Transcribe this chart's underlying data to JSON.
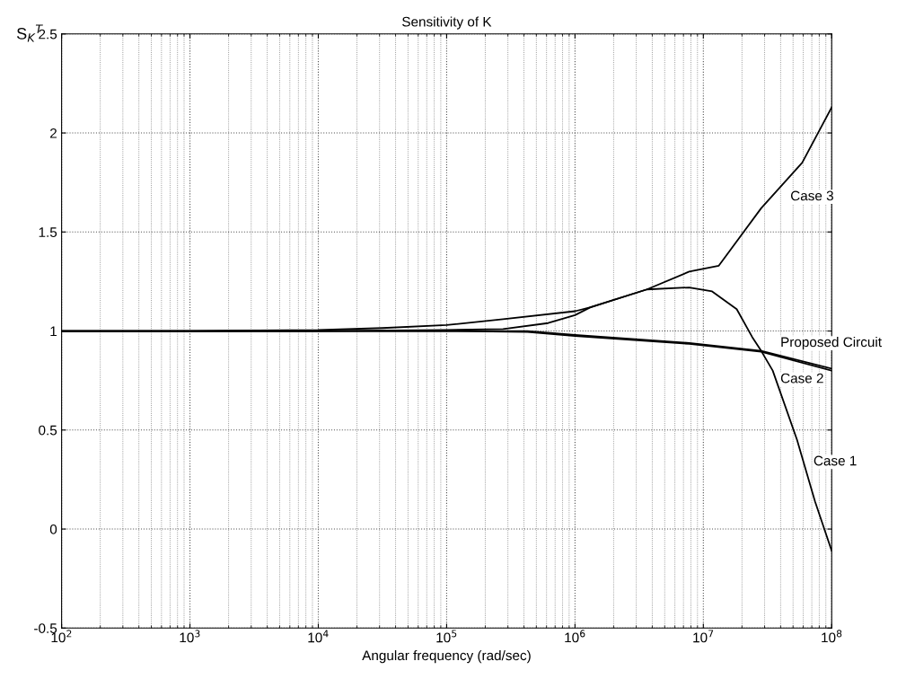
{
  "chart_data": {
    "type": "line",
    "title": "Sensitivity of K",
    "xlabel": "Angular frequency (rad/sec)",
    "ylabel": "S$_{K}$$^{T}$",
    "log": "x",
    "grid": true,
    "xlim": [
      100,
      100000000
    ],
    "ylim": [
      -0.5,
      2.5
    ],
    "xticks": [
      {
        "value": 100,
        "label": "10$^{2}$"
      },
      {
        "value": 1000,
        "label": "10$^{3}$"
      },
      {
        "value": 10000,
        "label": "10$^{4}$"
      },
      {
        "value": 100000,
        "label": "10$^{5}$"
      },
      {
        "value": 1000000,
        "label": "10$^{6}$"
      },
      {
        "value": 10000000,
        "label": "10$^{7}$"
      },
      {
        "value": 100000000,
        "label": "10$^{8}$"
      }
    ],
    "yticks": [
      -0.5,
      0,
      0.5,
      1,
      1.5,
      2,
      2.5
    ],
    "series": [
      {
        "name": "Case 3",
        "color": "#000000",
        "x": [
          100,
          1000,
          10000,
          31600,
          100000,
          275000,
          1000000,
          1320000,
          3630000,
          7760000,
          13200000,
          28200000,
          58900000,
          100000000
        ],
        "values": [
          1,
          1,
          1.005,
          1.015,
          1.03,
          1.06,
          1.1,
          1.12,
          1.21,
          1.3,
          1.33,
          1.62,
          1.85,
          2.13
        ]
      },
      {
        "name": "Case 1",
        "color": "#000000",
        "x": [
          100,
          10000,
          100000,
          275000,
          617000,
          1000000,
          1320000,
          3630000,
          7760000,
          11700000,
          18200000,
          24000000,
          28200000,
          34700000,
          53700000,
          74100000,
          100000000
        ],
        "values": [
          1,
          1,
          1.005,
          1.01,
          1.04,
          1.08,
          1.12,
          1.21,
          1.22,
          1.2,
          1.11,
          0.97,
          0.9,
          0.8,
          0.45,
          0.14,
          -0.11
        ]
      },
      {
        "name": "Proposed Circuit",
        "color": "#000000",
        "x": [
          100,
          10000,
          100000,
          426000,
          1000000,
          7760000,
          28200000,
          100000000
        ],
        "values": [
          1,
          1,
          1,
          1,
          0.98,
          0.94,
          0.9,
          0.81
        ]
      },
      {
        "name": "Case 2",
        "color": "#000000",
        "x": [
          100,
          10000,
          100000,
          426000,
          1000000,
          7760000,
          28200000,
          100000000
        ],
        "values": [
          1,
          1,
          1,
          0.995,
          0.975,
          0.935,
          0.895,
          0.8
        ]
      }
    ]
  }
}
